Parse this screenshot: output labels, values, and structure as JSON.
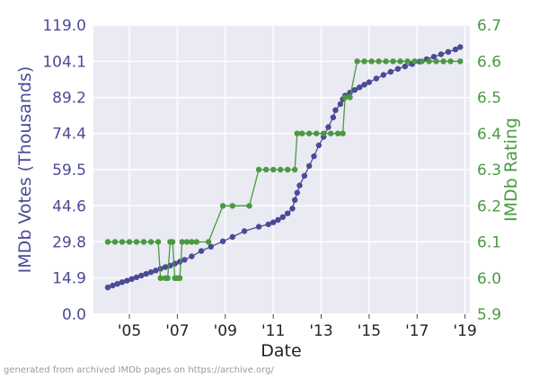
{
  "chart_data": {
    "type": "line",
    "title": "",
    "xlabel": "Date",
    "ylabel_left": "IMDb Votes (Thousands)",
    "ylabel_right": "IMDb Rating",
    "x_range": [
      2003.5,
      2019.2
    ],
    "x_ticks": [
      {
        "value": 2005,
        "label": "'05"
      },
      {
        "value": 2007,
        "label": "'07"
      },
      {
        "value": 2009,
        "label": "'09"
      },
      {
        "value": 2011,
        "label": "'11"
      },
      {
        "value": 2013,
        "label": "'13"
      },
      {
        "value": 2015,
        "label": "'15"
      },
      {
        "value": 2017,
        "label": "'17"
      },
      {
        "value": 2019,
        "label": "'19"
      }
    ],
    "y_left_range": [
      0,
      119
    ],
    "y_left_ticks": [
      "0.0",
      "14.9",
      "29.8",
      "44.6",
      "59.5",
      "74.4",
      "89.2",
      "104.1",
      "119.0"
    ],
    "y_right_range": [
      5.9,
      6.7
    ],
    "y_right_ticks": [
      "5.9",
      "6.0",
      "6.1",
      "6.2",
      "6.3",
      "6.4",
      "6.5",
      "6.6",
      "6.7"
    ],
    "grid": true,
    "series": [
      {
        "axis": "left",
        "color": "#4b4a96",
        "x": [
          2004.1,
          2004.3,
          2004.5,
          2004.7,
          2004.9,
          2005.1,
          2005.3,
          2005.5,
          2005.7,
          2005.9,
          2006.1,
          2006.3,
          2006.5,
          2006.7,
          2006.9,
          2007.1,
          2007.3,
          2007.6,
          2008.0,
          2008.4,
          2008.9,
          2009.3,
          2009.8,
          2010.4,
          2010.8,
          2011.0,
          2011.2,
          2011.4,
          2011.6,
          2011.8,
          2011.9,
          2012.0,
          2012.1,
          2012.3,
          2012.5,
          2012.7,
          2012.9,
          2013.1,
          2013.3,
          2013.5,
          2013.6,
          2013.8,
          2013.9,
          2014.0,
          2014.2,
          2014.4,
          2014.6,
          2014.8,
          2015.0,
          2015.3,
          2015.6,
          2015.9,
          2016.2,
          2016.5,
          2016.8,
          2017.1,
          2017.4,
          2017.7,
          2018.0,
          2018.3,
          2018.6,
          2018.8
        ],
        "values": [
          11.0,
          11.8,
          12.5,
          13.2,
          13.8,
          14.5,
          15.2,
          15.9,
          16.6,
          17.3,
          18.0,
          18.7,
          19.4,
          20.0,
          20.8,
          21.6,
          22.4,
          23.8,
          26.0,
          27.8,
          30.0,
          31.8,
          34.2,
          36.0,
          37.0,
          37.8,
          38.8,
          40.0,
          41.5,
          43.5,
          47.0,
          50.0,
          53.0,
          57.0,
          61.0,
          65.0,
          69.5,
          73.0,
          77.0,
          81.0,
          84.0,
          86.5,
          88.5,
          90.0,
          91.2,
          92.3,
          93.4,
          94.5,
          95.5,
          97.0,
          98.5,
          99.8,
          101.0,
          102.0,
          103.0,
          104.0,
          105.0,
          106.0,
          107.0,
          108.0,
          109.0,
          110.0
        ]
      },
      {
        "axis": "right",
        "color": "#4a9a40",
        "x": [
          2004.1,
          2004.4,
          2004.7,
          2005.0,
          2005.3,
          2005.6,
          2005.9,
          2006.2,
          2006.3,
          2006.5,
          2006.6,
          2006.7,
          2006.8,
          2006.9,
          2007.0,
          2007.1,
          2007.2,
          2007.4,
          2007.6,
          2007.8,
          2008.3,
          2008.9,
          2009.3,
          2010.0,
          2010.4,
          2010.7,
          2011.0,
          2011.3,
          2011.6,
          2011.9,
          2012.0,
          2012.2,
          2012.5,
          2012.8,
          2013.1,
          2013.4,
          2013.7,
          2013.9,
          2014.0,
          2014.2,
          2014.5,
          2014.8,
          2015.1,
          2015.4,
          2015.7,
          2016.0,
          2016.3,
          2016.6,
          2016.9,
          2017.2,
          2017.5,
          2017.8,
          2018.1,
          2018.4,
          2018.8
        ],
        "values": [
          6.1,
          6.1,
          6.1,
          6.1,
          6.1,
          6.1,
          6.1,
          6.1,
          6.0,
          6.0,
          6.0,
          6.1,
          6.1,
          6.0,
          6.0,
          6.0,
          6.1,
          6.1,
          6.1,
          6.1,
          6.1,
          6.2,
          6.2,
          6.2,
          6.3,
          6.3,
          6.3,
          6.3,
          6.3,
          6.3,
          6.4,
          6.4,
          6.4,
          6.4,
          6.4,
          6.4,
          6.4,
          6.4,
          6.5,
          6.5,
          6.6,
          6.6,
          6.6,
          6.6,
          6.6,
          6.6,
          6.6,
          6.6,
          6.6,
          6.6,
          6.6,
          6.6,
          6.6,
          6.6,
          6.6
        ]
      }
    ]
  },
  "footer": "generated from archived IMDb pages on https://archive.org/"
}
